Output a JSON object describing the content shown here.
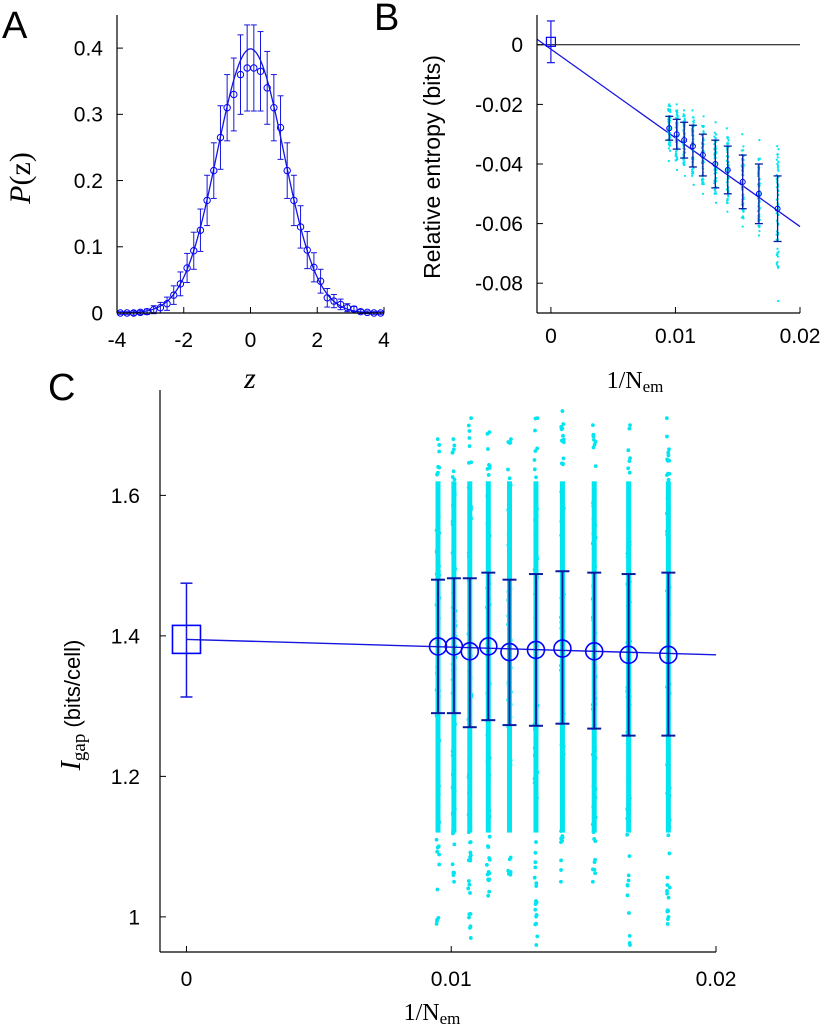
{
  "colors": {
    "fit": "#1515e0",
    "marker": "#0000ff",
    "cyan": "#00e5f0",
    "dark_err": "#0a1aa0",
    "axis": "#000000"
  },
  "panels": {
    "A": {
      "letter": "A",
      "ylabel_main": "P",
      "ylabel_arg": "(z)",
      "xlabel": "z"
    },
    "B": {
      "letter": "B",
      "ylabel": "Relative entropy (bits)",
      "xlabel_main": "1/N",
      "xlabel_sub": "em"
    },
    "C": {
      "letter": "C",
      "ylabel_main": "I",
      "ylabel_sub": "gap",
      "ylabel_unit": "(bits/cell)",
      "xlabel_main": "1/N",
      "xlabel_sub": "em"
    }
  },
  "chart_data": [
    {
      "panel": "A",
      "type": "line",
      "xlim": [
        -4,
        4
      ],
      "ylim": [
        0,
        0.45
      ],
      "xticks": [
        -4,
        -2,
        0,
        2,
        4
      ],
      "yticks": [
        0,
        0.1,
        0.2,
        0.3,
        0.4
      ],
      "xtick_labels": [
        "-4",
        "-2",
        "0",
        "2",
        "4"
      ],
      "ytick_labels": [
        "0",
        "0.1",
        "0.2",
        "0.3",
        "0.4"
      ],
      "fit_curve": "gaussian",
      "fit_mean": 0,
      "fit_sd": 1,
      "points": {
        "x": [
          -3.9,
          -3.7,
          -3.5,
          -3.3,
          -3.1,
          -2.9,
          -2.7,
          -2.5,
          -2.3,
          -2.1,
          -1.9,
          -1.7,
          -1.5,
          -1.3,
          -1.1,
          -0.9,
          -0.7,
          -0.5,
          -0.3,
          -0.1,
          0.1,
          0.3,
          0.5,
          0.7,
          0.9,
          1.1,
          1.3,
          1.5,
          1.7,
          1.9,
          2.1,
          2.3,
          2.5,
          2.7,
          2.9,
          3.1,
          3.3,
          3.5,
          3.7,
          3.9
        ],
        "y": [
          0.0,
          0.0,
          0.0,
          0.001,
          0.002,
          0.005,
          0.008,
          0.014,
          0.027,
          0.044,
          0.068,
          0.094,
          0.125,
          0.17,
          0.215,
          0.265,
          0.31,
          0.33,
          0.36,
          0.37,
          0.37,
          0.365,
          0.34,
          0.31,
          0.28,
          0.215,
          0.17,
          0.13,
          0.095,
          0.069,
          0.048,
          0.023,
          0.018,
          0.013,
          0.008,
          0.006,
          0.002,
          0.001,
          0.0,
          0.0
        ],
        "err": [
          0.002,
          0.002,
          0.003,
          0.003,
          0.004,
          0.006,
          0.008,
          0.01,
          0.014,
          0.018,
          0.022,
          0.028,
          0.032,
          0.038,
          0.042,
          0.048,
          0.05,
          0.055,
          0.06,
          0.065,
          0.065,
          0.06,
          0.055,
          0.05,
          0.048,
          0.042,
          0.038,
          0.032,
          0.028,
          0.022,
          0.018,
          0.014,
          0.01,
          0.008,
          0.006,
          0.004,
          0.003,
          0.002,
          0.002,
          0.002
        ]
      }
    },
    {
      "panel": "B",
      "type": "scatter",
      "xlim": [
        -0.002,
        0.02
      ],
      "ylim": [
        -0.09,
        0.01
      ],
      "xticks": [
        0,
        0.01,
        0.02
      ],
      "yticks": [
        0,
        -0.02,
        -0.04,
        -0.06,
        -0.08
      ],
      "xtick_labels": [
        "0",
        "0.01",
        "0.02"
      ],
      "ytick_labels": [
        "0",
        "-0.02",
        "-0.04",
        "-0.06",
        "-0.08"
      ],
      "zero_line": 0,
      "fit_line": {
        "x": [
          -0.002,
          0.02
        ],
        "y": [
          0.0045,
          -0.061
        ]
      },
      "extrapolated": {
        "x": 0,
        "y": 0.001,
        "err": 0.007
      },
      "means": {
        "x": [
          0.0095,
          0.0101,
          0.0107,
          0.0114,
          0.0122,
          0.0132,
          0.0142,
          0.0154,
          0.0167,
          0.0182
        ],
        "y": [
          -0.028,
          -0.03,
          -0.032,
          -0.034,
          -0.037,
          -0.04,
          -0.042,
          -0.046,
          -0.05,
          -0.055
        ],
        "err": [
          0.004,
          0.005,
          0.006,
          0.007,
          0.007,
          0.008,
          0.008,
          0.009,
          0.01,
          0.011
        ]
      },
      "scatter_spread": {
        "x": [
          0.0095,
          0.0101,
          0.0107,
          0.0114,
          0.0122,
          0.0132,
          0.0142,
          0.0154,
          0.0167,
          0.0182
        ],
        "ymin": [
          -0.039,
          -0.042,
          -0.044,
          -0.047,
          -0.05,
          -0.053,
          -0.056,
          -0.061,
          -0.064,
          -0.086
        ],
        "ymax": [
          -0.02,
          -0.02,
          -0.022,
          -0.022,
          -0.024,
          -0.026,
          -0.028,
          -0.03,
          -0.032,
          -0.034
        ]
      }
    },
    {
      "panel": "C",
      "type": "scatter",
      "xlim": [
        -0.001,
        0.02
      ],
      "ylim": [
        0.95,
        1.75
      ],
      "xticks": [
        0,
        0.01,
        0.02
      ],
      "yticks": [
        1,
        1.2,
        1.4,
        1.6
      ],
      "xtick_labels": [
        "0",
        "0.01",
        "0.02"
      ],
      "ytick_labels": [
        "1",
        "1.2",
        "1.4",
        "1.6"
      ],
      "fit_line": {
        "x": [
          0,
          0.02
        ],
        "y": [
          1.395,
          1.373
        ]
      },
      "extrapolated": {
        "x": 0,
        "y": 1.395,
        "err_low": 1.313,
        "err_high": 1.475
      },
      "means": {
        "x": [
          0.0095,
          0.0101,
          0.0107,
          0.0114,
          0.0122,
          0.0132,
          0.0142,
          0.0154,
          0.0167,
          0.0182
        ],
        "y": [
          1.385,
          1.385,
          1.378,
          1.385,
          1.377,
          1.38,
          1.382,
          1.378,
          1.373,
          1.373
        ],
        "err_low": [
          1.29,
          1.29,
          1.27,
          1.28,
          1.273,
          1.272,
          1.275,
          1.268,
          1.258,
          1.258
        ],
        "err_high": [
          1.48,
          1.482,
          1.482,
          1.49,
          1.48,
          1.488,
          1.492,
          1.49,
          1.488,
          1.49
        ]
      },
      "scatter_spread": {
        "x": [
          0.0095,
          0.0101,
          0.0107,
          0.0114,
          0.0122,
          0.0132,
          0.0142,
          0.0154,
          0.0167,
          0.0182
        ],
        "ymin": [
          0.99,
          1.05,
          0.97,
          1.03,
          1.06,
          0.96,
          1.05,
          1.05,
          0.96,
          0.99
        ],
        "ymax": [
          1.68,
          1.68,
          1.71,
          1.69,
          1.68,
          1.71,
          1.72,
          1.7,
          1.7,
          1.71
        ]
      }
    }
  ]
}
